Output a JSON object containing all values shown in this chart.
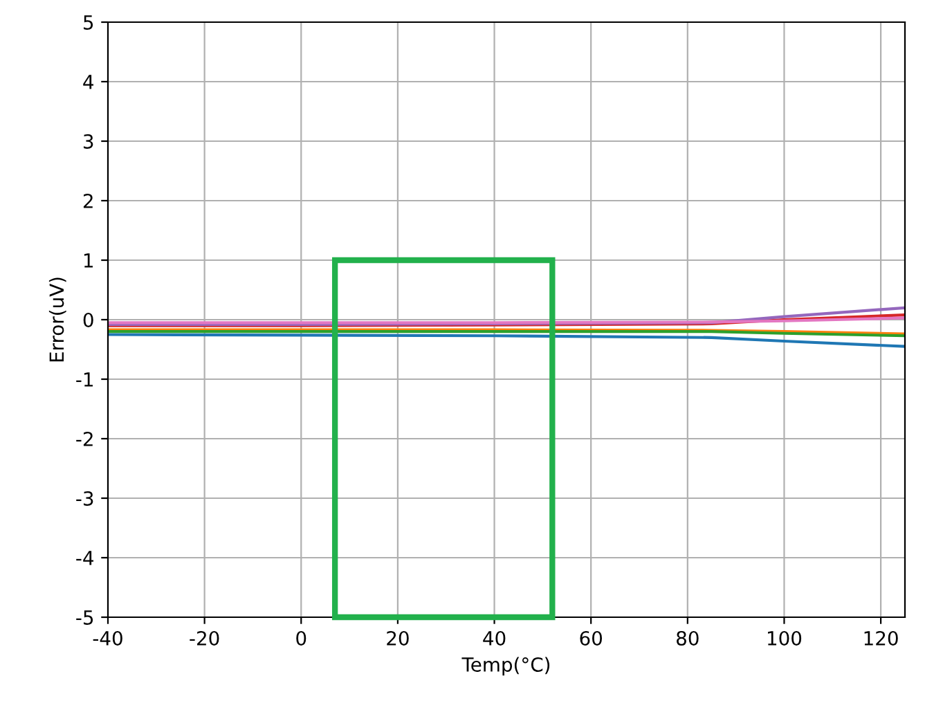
{
  "chart_data": {
    "type": "line",
    "xlabel": "Temp(°C)",
    "ylabel": "Error(uV)",
    "x": [
      -40,
      0,
      40,
      85,
      100,
      125
    ],
    "series": [
      {
        "color": "#1f77b4",
        "values": [
          -0.25,
          -0.26,
          -0.27,
          -0.3,
          -0.36,
          -0.45
        ]
      },
      {
        "color": "#ff7f0e",
        "values": [
          -0.17,
          -0.17,
          -0.17,
          -0.18,
          -0.2,
          -0.24
        ]
      },
      {
        "color": "#2ca02c",
        "values": [
          -0.2,
          -0.2,
          -0.2,
          -0.2,
          -0.23,
          -0.27
        ]
      },
      {
        "color": "#d62728",
        "values": [
          -0.1,
          -0.1,
          -0.09,
          -0.07,
          0.0,
          0.08
        ]
      },
      {
        "color": "#9467bd",
        "values": [
          -0.08,
          -0.08,
          -0.07,
          -0.05,
          0.05,
          0.2
        ]
      },
      {
        "color": "#e377c2",
        "values": [
          -0.05,
          -0.05,
          -0.05,
          -0.04,
          -0.02,
          0.03
        ]
      }
    ],
    "xlim": [
      -40,
      125
    ],
    "ylim": [
      -5,
      5
    ],
    "xticks": [
      -40,
      -20,
      0,
      20,
      40,
      60,
      80,
      100,
      120
    ],
    "yticks": [
      -5,
      -4,
      -3,
      -2,
      -1,
      0,
      1,
      2,
      3,
      4,
      5
    ],
    "grid": true,
    "marker": "none",
    "line_style": "solid"
  }
}
